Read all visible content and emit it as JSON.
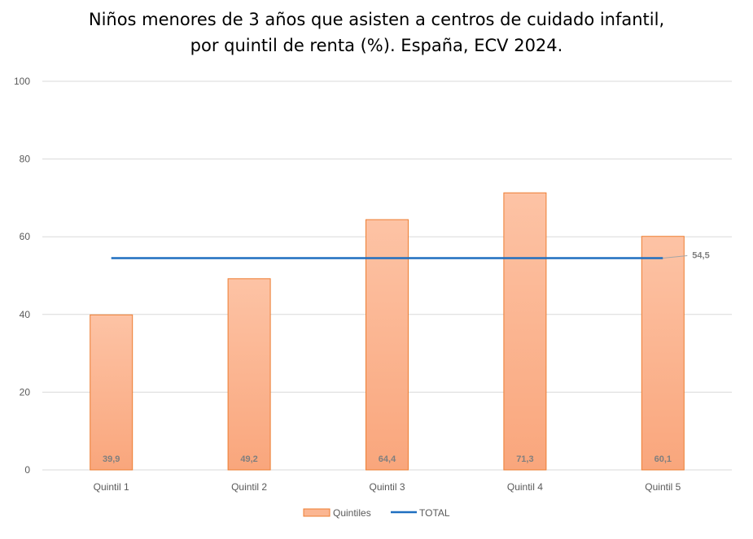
{
  "title_lines": [
    "Niños menores de 3 años que asisten a centros de cuidado infantil,",
    "por quintil de renta (%). España, ECV 2024."
  ],
  "chart_data": {
    "type": "bar",
    "title": "Niños menores de 3 años que asisten a centros de cuidado infantil, por quintil de renta (%). España, ECV 2024.",
    "categories": [
      "Quintil 1",
      "Quintil 2",
      "Quintil 3",
      "Quintil 4",
      "Quintil 5"
    ],
    "series": [
      {
        "name": "Quintiles",
        "type": "bar",
        "values": [
          39.9,
          49.2,
          64.4,
          71.3,
          60.1
        ],
        "labels": [
          "39,9",
          "49,2",
          "64,4",
          "71,3",
          "60,1"
        ],
        "color": "#f8a87c",
        "border_color": "#ed7d31"
      },
      {
        "name": "TOTAL",
        "type": "line",
        "values": [
          54.5,
          54.5,
          54.5,
          54.5,
          54.5
        ],
        "end_label": "54,5",
        "color": "#1f6fc0"
      }
    ],
    "ylim": [
      0,
      100
    ],
    "yticks": [
      0,
      20,
      40,
      60,
      80,
      100
    ],
    "grid": true,
    "legend_position": "bottom"
  }
}
